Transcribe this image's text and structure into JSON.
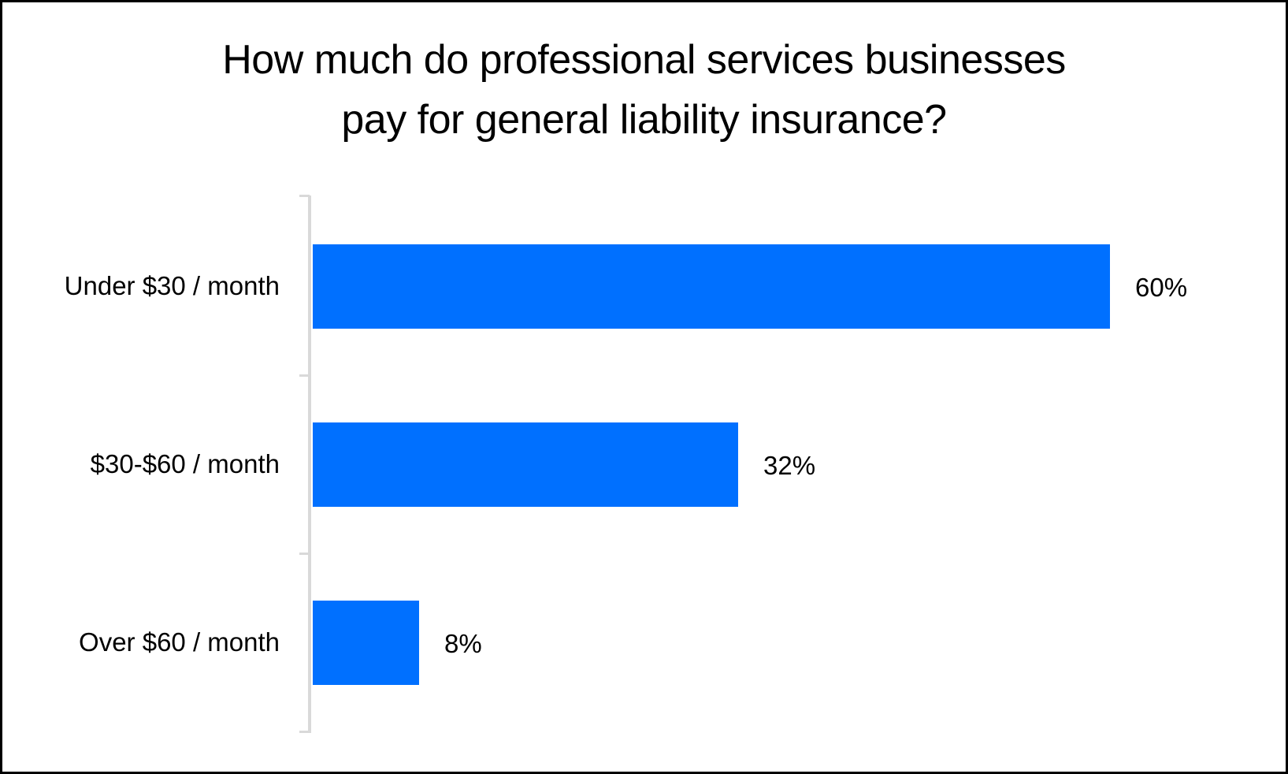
{
  "chart_data": {
    "type": "bar",
    "orientation": "horizontal",
    "title": "How much do professional services businesses pay for general liability insurance?",
    "title_lines": [
      "How much do professional services businesses",
      "pay for general liability insurance?"
    ],
    "categories": [
      "Under $30 / month",
      "$30-$60 / month",
      "Over $60 / month"
    ],
    "values": [
      60,
      32,
      8
    ],
    "value_labels": [
      "60%",
      "32%",
      "8%"
    ],
    "xlabel": "",
    "ylabel": "",
    "xlim": [
      0,
      67
    ],
    "grid": false,
    "legend": "none",
    "bar_color": "#0070ff",
    "axis_color": "#d9d9d9"
  }
}
